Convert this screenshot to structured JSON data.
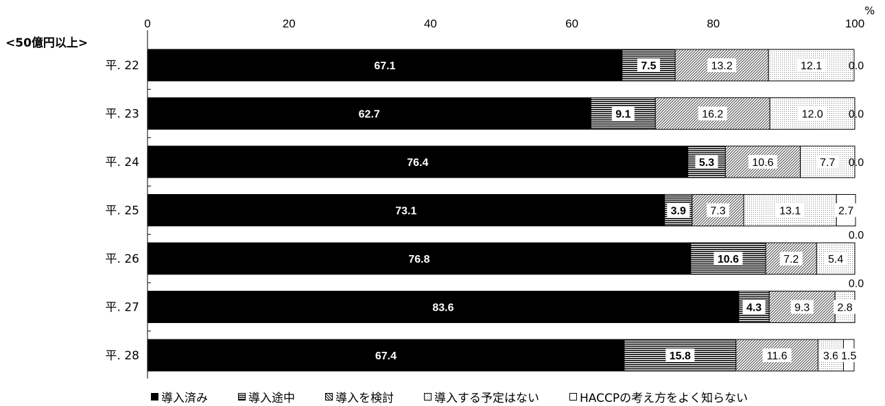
{
  "subtitle": "<50億円以上>",
  "unit": "%",
  "chart_data": {
    "type": "bar",
    "orientation": "horizontal",
    "stacked": true,
    "categories": [
      "平. 22",
      "平. 23",
      "平. 24",
      "平. 25",
      "平. 26",
      "平. 27",
      "平. 28"
    ],
    "series": [
      {
        "name": "導入済み",
        "values": [
          67.1,
          62.7,
          76.4,
          73.1,
          76.8,
          83.6,
          67.4
        ],
        "color": "#000000",
        "pattern": "solid"
      },
      {
        "name": "導入途中",
        "values": [
          7.5,
          9.1,
          5.3,
          3.9,
          10.6,
          4.3,
          15.8
        ],
        "color": "#000000",
        "pattern": "horizontal-lines"
      },
      {
        "name": "導入を検討",
        "values": [
          13.2,
          16.2,
          10.6,
          7.3,
          7.2,
          9.3,
          11.6
        ],
        "color": "#000000",
        "pattern": "diagonal-hatch"
      },
      {
        "name": "導入する予定はない",
        "values": [
          12.1,
          12.0,
          7.7,
          13.1,
          5.4,
          2.8,
          3.6
        ],
        "color": "#000000",
        "pattern": "dots"
      },
      {
        "name": "HACCPの考え方をよく知らない",
        "values": [
          0.0,
          0.0,
          0.0,
          2.7,
          0.0,
          0.0,
          1.5
        ],
        "color": "#ffffff",
        "pattern": "none"
      }
    ],
    "value_labels": [
      [
        "67.1",
        "7.5",
        "13.2",
        "12.1",
        "0.0"
      ],
      [
        "62.7",
        "9.1",
        "16.2",
        "12.0",
        "0.0"
      ],
      [
        "76.4",
        "5.3",
        "10.6",
        "7.7",
        "0.0"
      ],
      [
        "73.1",
        "3.9",
        "7.3",
        "13.1",
        "2.7"
      ],
      [
        "76.8",
        "10.6",
        "7.2",
        "5.4",
        "0.0"
      ],
      [
        "83.6",
        "4.3",
        "9.3",
        "2.8",
        "0.0"
      ],
      [
        "67.4",
        "15.8",
        "11.6",
        "3.6",
        "1.5"
      ]
    ],
    "xlim": [
      0,
      100
    ],
    "xticks": [
      0,
      20,
      40,
      60,
      80,
      100
    ],
    "legend_position": "bottom",
    "grid": false
  }
}
